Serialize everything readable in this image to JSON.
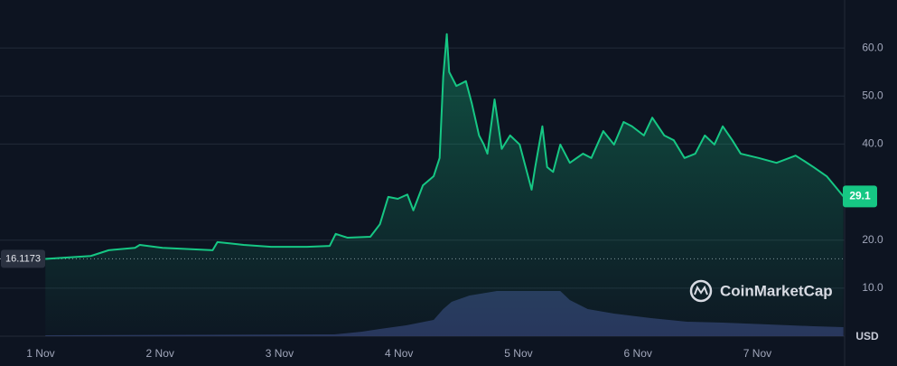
{
  "chart_data": {
    "type": "line",
    "x": [
      1.04,
      1.42,
      1.57,
      1.79,
      1.83,
      2.02,
      2.44,
      2.48,
      2.7,
      2.93,
      3.23,
      3.42,
      3.47,
      3.57,
      3.76,
      3.84,
      3.91,
      3.99,
      4.07,
      4.12,
      4.2,
      4.29,
      4.34,
      4.37,
      4.4,
      4.42,
      4.48,
      4.56,
      4.61,
      4.67,
      4.71,
      4.74,
      4.8,
      4.86,
      4.93,
      5.01,
      5.11,
      5.14,
      5.2,
      5.24,
      5.29,
      5.35,
      5.43,
      5.54,
      5.61,
      5.71,
      5.8,
      5.88,
      5.95,
      6.05,
      6.12,
      6.22,
      6.3,
      6.39,
      6.48,
      6.56,
      6.64,
      6.71,
      6.79,
      6.86,
      7.01,
      7.16,
      7.32,
      7.39,
      7.47,
      7.58,
      7.66,
      7.72
    ],
    "series": [
      {
        "color": "#16c784",
        "values": [
          16.1,
          16.7,
          17.9,
          18.4,
          19.0,
          18.4,
          17.9,
          19.6,
          19.0,
          18.6,
          18.6,
          18.8,
          21.3,
          20.5,
          20.7,
          23.3,
          29.0,
          28.6,
          29.5,
          26.2,
          31.4,
          33.3,
          37.1,
          54.0,
          62.9,
          55.0,
          52.1,
          53.1,
          48.4,
          41.8,
          39.9,
          38.0,
          49.3,
          39.0,
          41.8,
          39.9,
          30.5,
          35.2,
          43.7,
          35.2,
          34.2,
          39.9,
          36.1,
          38.0,
          37.1,
          42.7,
          39.9,
          44.6,
          43.7,
          41.8,
          45.5,
          41.8,
          40.8,
          37.1,
          38.0,
          41.8,
          39.9,
          43.7,
          40.8,
          38.0,
          37.1,
          36.1,
          37.6,
          36.5,
          35.2,
          33.3,
          30.9,
          29.1
        ]
      }
    ],
    "volume": {
      "color": "#2f3a66",
      "axis": "y2",
      "x": [
        1.04,
        3.46,
        3.69,
        3.84,
        4.06,
        4.29,
        4.37,
        4.44,
        4.59,
        4.82,
        5.05,
        5.2,
        5.35,
        5.43,
        5.58,
        5.8,
        6.11,
        6.41,
        6.71,
        7.09,
        7.47,
        7.72
      ],
      "values": [
        1,
        2,
        5,
        8,
        12,
        18,
        30,
        38,
        45,
        50,
        50,
        50,
        50,
        40,
        30,
        25,
        20,
        16,
        15,
        13,
        11,
        10
      ]
    },
    "y2lim": [
      0,
      100
    ],
    "xlim": [
      0.66,
      7.73
    ],
    "xticks": [
      {
        "value": 1,
        "label": "1 Nov"
      },
      {
        "value": 2,
        "label": "2 Nov"
      },
      {
        "value": 3,
        "label": "3 Nov"
      },
      {
        "value": 4,
        "label": "4 Nov"
      },
      {
        "value": 5,
        "label": "5 Nov"
      },
      {
        "value": 6,
        "label": "6 Nov"
      },
      {
        "value": 7,
        "label": "7 Nov"
      }
    ],
    "ylim": [
      0,
      70
    ],
    "yticks": [
      {
        "value": 10,
        "label": "10.0"
      },
      {
        "value": 20,
        "label": "20.0"
      },
      {
        "value": 40,
        "label": "40.0"
      },
      {
        "value": 50,
        "label": "50.0"
      },
      {
        "value": 60,
        "label": "60.0"
      }
    ],
    "grid": true,
    "start_price": 16.1173,
    "current_price": 29.1,
    "currency": "USD",
    "brand": "CoinMarketCap"
  }
}
